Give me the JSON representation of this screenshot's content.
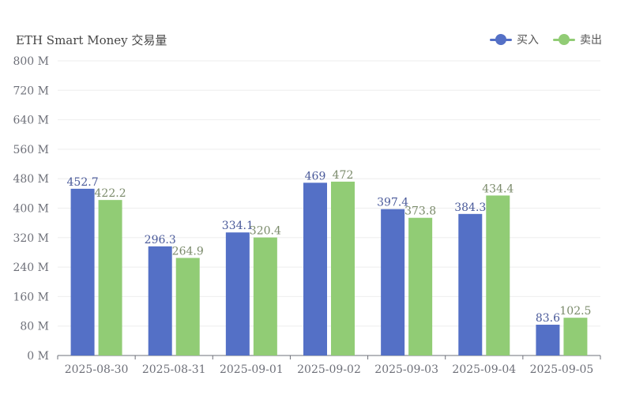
{
  "title": "ETH Smart Money 交易量",
  "legend": [
    {
      "label": "买入",
      "color": "#5470c6"
    },
    {
      "label": "卖出",
      "color": "#91cc75"
    }
  ],
  "chart_data": {
    "type": "bar",
    "title": "ETH Smart Money 交易量",
    "categories": [
      "2025-08-30",
      "2025-08-31",
      "2025-09-01",
      "2025-09-02",
      "2025-09-03",
      "2025-09-04",
      "2025-09-05"
    ],
    "series": [
      {
        "name": "买入",
        "color": "#5470c6",
        "values": [
          452.7,
          296.3,
          334.1,
          469,
          397.4,
          384.3,
          83.6
        ]
      },
      {
        "name": "卖出",
        "color": "#91cc75",
        "values": [
          422.2,
          264.9,
          320.4,
          472,
          373.8,
          434.4,
          102.5
        ]
      }
    ],
    "ylim": [
      0,
      800
    ],
    "yticks": [
      0,
      80,
      160,
      240,
      320,
      400,
      480,
      560,
      640,
      720,
      800
    ],
    "ytick_labels": [
      "0 M",
      "80 M",
      "160 M",
      "240 M",
      "320 M",
      "400 M",
      "480 M",
      "560 M",
      "640 M",
      "720 M",
      "800 M"
    ],
    "grid": true,
    "legend_position": "top-right",
    "data_labels": true
  }
}
